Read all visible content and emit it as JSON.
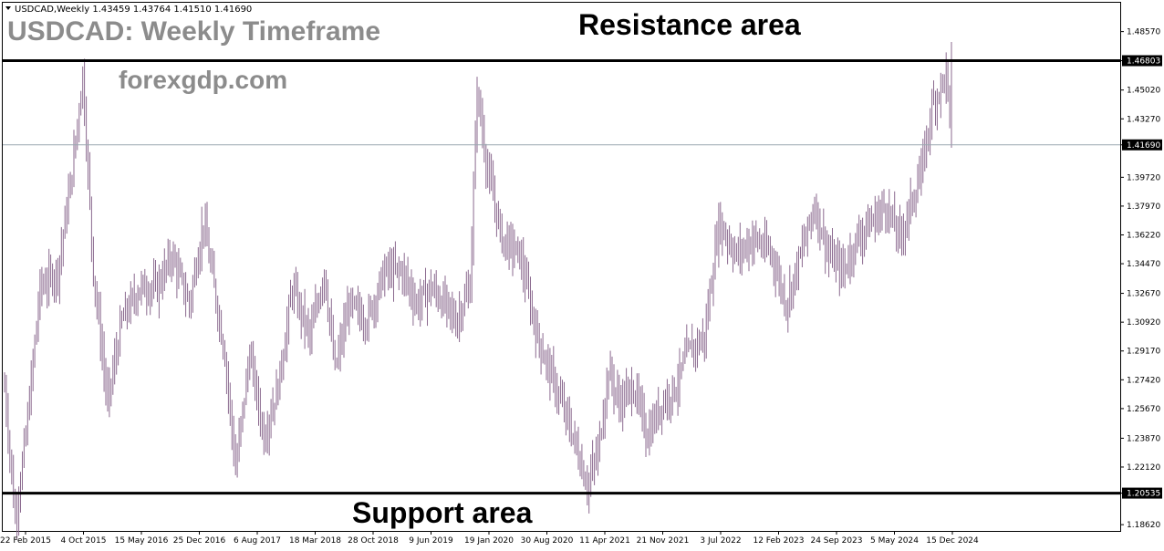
{
  "header": {
    "symbol_info": "USDCAD,Weekly  1.43459 1.43764 1.41510 1.41690",
    "title": "USDCAD: Weekly Timeframe",
    "brand": "forexgdp.com"
  },
  "colors": {
    "background": "#ffffff",
    "candle": "#8b6a8f",
    "frame": "#000000",
    "current_price_line": "#9aa7b0",
    "price_tag_bg": "#000000",
    "annotation_text": "#8c8c8c"
  },
  "chart_data": {
    "type": "bar",
    "title": "USDCAD: Weekly Timeframe",
    "symbol": "USDCAD",
    "timeframe": "Weekly",
    "ohlc_last": {
      "open": 1.43459,
      "high": 1.43764,
      "low": 1.4151,
      "close": 1.4169
    },
    "ylim": [
      1.1835,
      1.4938
    ],
    "y_ticks": [
      "1.48570",
      "1.46803",
      "1.45020",
      "1.43270",
      "1.41690",
      "1.39720",
      "1.37970",
      "1.36220",
      "1.34470",
      "1.32670",
      "1.30920",
      "1.29170",
      "1.27420",
      "1.25670",
      "1.23870",
      "1.22120",
      "1.20535",
      "1.18620"
    ],
    "x_ticks": [
      "22 Feb 2015",
      "4 Oct 2015",
      "15 May 2016",
      "25 Dec 2016",
      "6 Aug 2017",
      "18 Mar 2018",
      "28 Oct 2018",
      "9 Jun 2019",
      "19 Jan 2020",
      "30 Aug 2020",
      "11 Apr 2021",
      "21 Nov 2021",
      "3 Jul 2022",
      "12 Feb 2023",
      "24 Sep 2023",
      "5 May 2024",
      "15 Dec 2024"
    ],
    "grid": false,
    "levels": [
      {
        "name": "Resistance area",
        "value": 1.46803
      },
      {
        "name": "Support area",
        "value": 1.20535
      }
    ],
    "current_price": 1.4169,
    "price_path": [
      [
        0,
        1.27
      ],
      [
        6,
        1.19
      ],
      [
        12,
        1.24
      ],
      [
        20,
        1.33
      ],
      [
        30,
        1.34
      ],
      [
        38,
        1.4
      ],
      [
        44,
        1.46
      ],
      [
        50,
        1.34
      ],
      [
        58,
        1.26
      ],
      [
        66,
        1.31
      ],
      [
        76,
        1.33
      ],
      [
        86,
        1.33
      ],
      [
        94,
        1.35
      ],
      [
        104,
        1.32
      ],
      [
        112,
        1.37
      ],
      [
        118,
        1.33
      ],
      [
        124,
        1.29
      ],
      [
        130,
        1.22
      ],
      [
        138,
        1.29
      ],
      [
        146,
        1.24
      ],
      [
        154,
        1.27
      ],
      [
        162,
        1.33
      ],
      [
        172,
        1.3
      ],
      [
        180,
        1.34
      ],
      [
        186,
        1.28
      ],
      [
        194,
        1.32
      ],
      [
        204,
        1.31
      ],
      [
        214,
        1.34
      ],
      [
        224,
        1.34
      ],
      [
        232,
        1.32
      ],
      [
        240,
        1.33
      ],
      [
        248,
        1.32
      ],
      [
        254,
        1.31
      ],
      [
        262,
        1.33
      ],
      [
        266,
        1.45
      ],
      [
        272,
        1.4
      ],
      [
        280,
        1.36
      ],
      [
        290,
        1.35
      ],
      [
        300,
        1.3
      ],
      [
        310,
        1.27
      ],
      [
        320,
        1.24
      ],
      [
        328,
        1.21
      ],
      [
        334,
        1.23
      ],
      [
        340,
        1.28
      ],
      [
        346,
        1.26
      ],
      [
        354,
        1.27
      ],
      [
        362,
        1.24
      ],
      [
        370,
        1.26
      ],
      [
        378,
        1.27
      ],
      [
        384,
        1.29
      ],
      [
        394,
        1.3
      ],
      [
        402,
        1.37
      ],
      [
        412,
        1.35
      ],
      [
        422,
        1.36
      ],
      [
        432,
        1.35
      ],
      [
        440,
        1.32
      ],
      [
        448,
        1.35
      ],
      [
        456,
        1.38
      ],
      [
        464,
        1.35
      ],
      [
        472,
        1.34
      ],
      [
        480,
        1.36
      ],
      [
        488,
        1.37
      ],
      [
        496,
        1.38
      ],
      [
        504,
        1.36
      ],
      [
        510,
        1.38
      ],
      [
        516,
        1.4
      ],
      [
        522,
        1.44
      ],
      [
        530,
        1.46
      ],
      [
        533,
        1.4169
      ]
    ]
  }
}
